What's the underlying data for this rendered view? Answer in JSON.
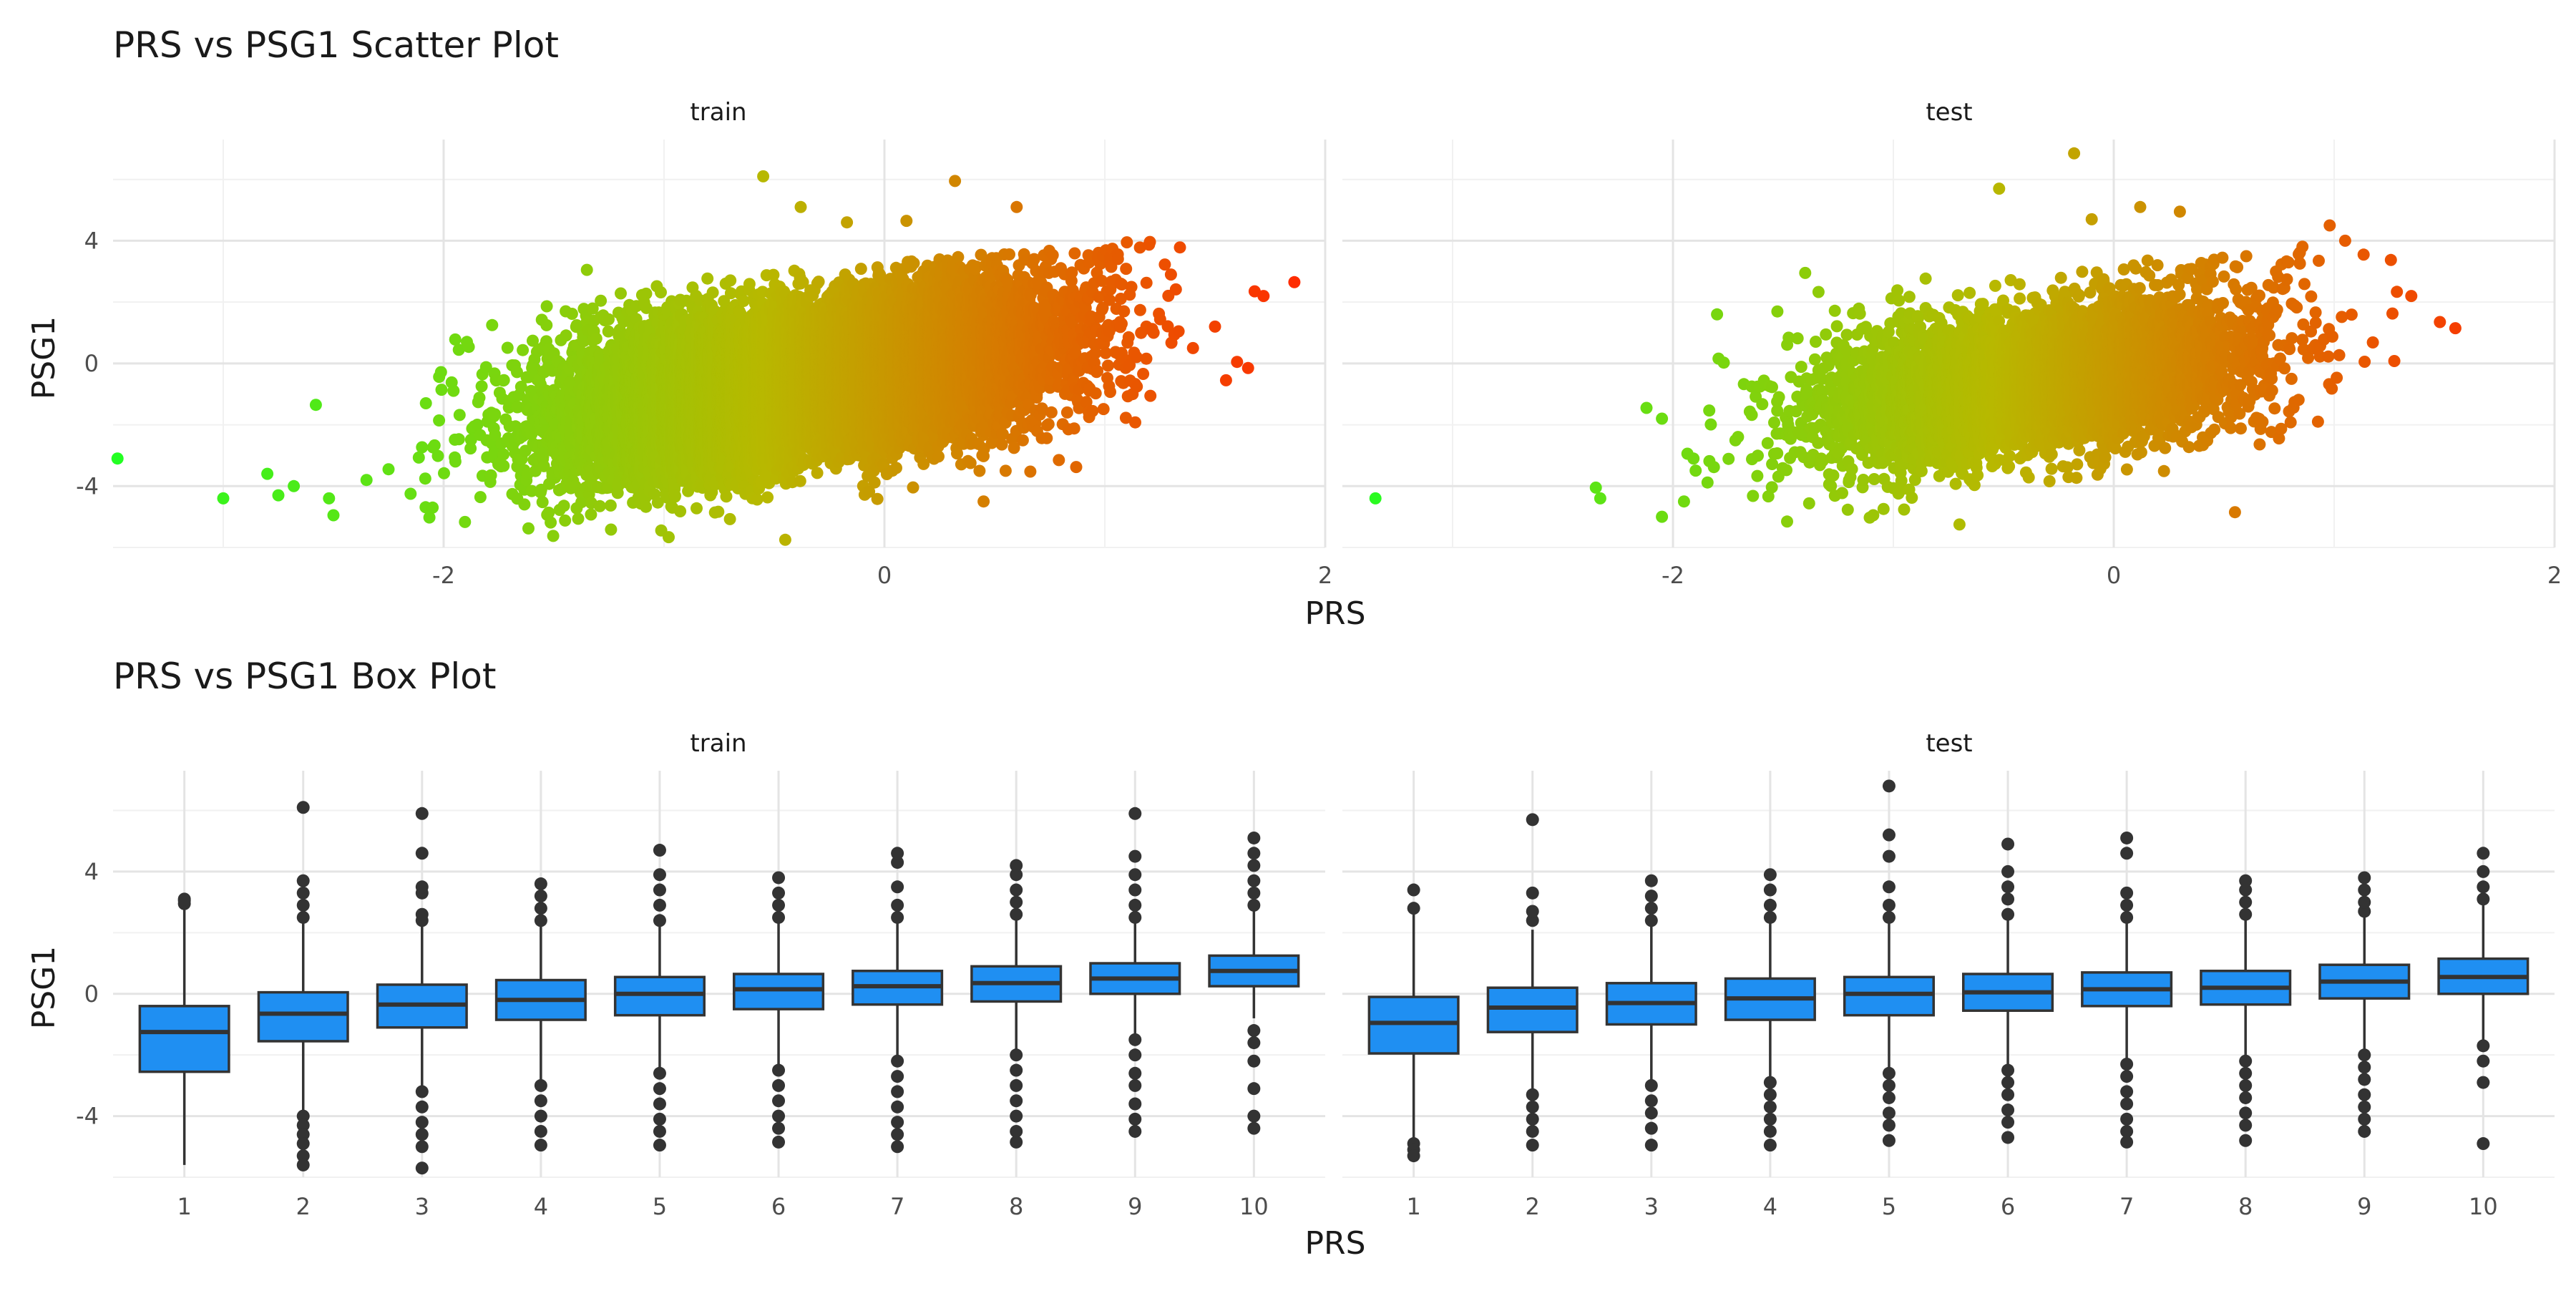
{
  "chart_data": [
    {
      "type": "scatter",
      "title": "PRS vs PSG1 Scatter Plot",
      "xlabel": "PRS",
      "ylabel": "PSG1",
      "facets": [
        "train",
        "test"
      ],
      "x_ticks": [
        "-2",
        "0",
        "2"
      ],
      "y_ticks": [
        "4",
        "0",
        "-4"
      ],
      "xlim": [
        -3.5,
        2.0
      ],
      "ylim": [
        -6.0,
        7.3
      ],
      "grid": true,
      "color_scale": {
        "low": "#22ff22",
        "mid": "#b8b800",
        "high": "#ff2a00",
        "mapped_to": "PRS"
      },
      "series": [
        {
          "facet": "train",
          "n_points_approx": 20000,
          "cloud": {
            "x_mean": -0.35,
            "x_sd": 0.5,
            "y_intercept": -0.15,
            "y_slope": 1.15,
            "y_sd": 1.3,
            "y_min": -5.7,
            "y_max": 3.3
          },
          "outliers": [
            [
              -3.48,
              -3.1
            ],
            [
              -3.0,
              -4.4
            ],
            [
              -2.8,
              -3.6
            ],
            [
              -2.75,
              -4.3
            ],
            [
              -2.68,
              -4.0
            ],
            [
              -2.58,
              -1.35
            ],
            [
              -2.52,
              -4.4
            ],
            [
              -2.5,
              -4.95
            ],
            [
              -2.35,
              -3.8
            ],
            [
              -2.25,
              -3.45
            ],
            [
              -2.15,
              -4.25
            ],
            [
              -2.05,
              -4.7
            ],
            [
              -1.78,
              1.25
            ],
            [
              -1.35,
              3.05
            ],
            [
              -0.55,
              6.1
            ],
            [
              -0.38,
              5.1
            ],
            [
              -0.17,
              4.6
            ],
            [
              0.1,
              4.65
            ],
            [
              0.32,
              5.95
            ],
            [
              0.6,
              5.1
            ],
            [
              0.98,
              3.25
            ],
            [
              1.1,
              3.95
            ],
            [
              1.3,
              2.9
            ],
            [
              1.4,
              0.5
            ],
            [
              1.5,
              1.2
            ],
            [
              1.55,
              -0.55
            ],
            [
              1.6,
              0.05
            ],
            [
              1.65,
              -0.15
            ],
            [
              1.68,
              2.35
            ],
            [
              1.72,
              2.2
            ],
            [
              1.86,
              2.65
            ],
            [
              0.65,
              -2.0
            ],
            [
              0.55,
              -3.5
            ],
            [
              0.45,
              -4.5
            ],
            [
              -0.45,
              -5.75
            ]
          ]
        },
        {
          "facet": "test",
          "n_points_approx": 6000,
          "cloud": {
            "x_mean": -0.35,
            "x_sd": 0.48,
            "y_intercept": -0.2,
            "y_slope": 1.05,
            "y_sd": 1.3,
            "y_min": -5.3,
            "y_max": 3.3
          },
          "outliers": [
            [
              -3.35,
              -4.4
            ],
            [
              -2.35,
              -4.05
            ],
            [
              -2.33,
              -4.4
            ],
            [
              -2.12,
              -1.45
            ],
            [
              -2.05,
              -1.8
            ],
            [
              -2.05,
              -5.0
            ],
            [
              -1.95,
              -4.5
            ],
            [
              -1.8,
              1.6
            ],
            [
              -1.4,
              2.95
            ],
            [
              -0.52,
              5.7
            ],
            [
              -0.18,
              6.85
            ],
            [
              -0.1,
              4.7
            ],
            [
              0.12,
              5.1
            ],
            [
              0.3,
              4.95
            ],
            [
              0.98,
              4.5
            ],
            [
              1.05,
              4.0
            ],
            [
              1.35,
              2.2
            ],
            [
              1.48,
              1.35
            ],
            [
              1.55,
              1.15
            ],
            [
              0.6,
              -0.3
            ],
            [
              0.55,
              -4.85
            ],
            [
              -0.7,
              -5.25
            ]
          ]
        }
      ]
    },
    {
      "type": "box",
      "title": "PRS vs PSG1 Box Plot",
      "xlabel": "PRS",
      "ylabel": "PSG1",
      "facets": [
        "train",
        "test"
      ],
      "categories": [
        "1",
        "2",
        "3",
        "4",
        "5",
        "6",
        "7",
        "8",
        "9",
        "10"
      ],
      "y_ticks": [
        "4",
        "0",
        "-4"
      ],
      "ylim": [
        -6.0,
        7.3
      ],
      "grid": true,
      "fill_color": "#1f8ff2",
      "series": [
        {
          "name": "train",
          "boxes": [
            {
              "q1": -2.55,
              "median": -1.25,
              "q3": -0.4,
              "whisker_low": -5.6,
              "whisker_high": 2.85,
              "outliers": [
                2.95,
                3.05,
                3.1
              ]
            },
            {
              "q1": -1.55,
              "median": -0.65,
              "q3": 0.05,
              "whisker_low": -3.9,
              "whisker_high": 2.3,
              "outliers": [
                -4.0,
                -4.3,
                -4.6,
                -4.9,
                -5.3,
                -5.6,
                2.5,
                2.9,
                3.3,
                3.7,
                6.1
              ]
            },
            {
              "q1": -1.1,
              "median": -0.35,
              "q3": 0.3,
              "whisker_low": -3.0,
              "whisker_high": 2.3,
              "outliers": [
                -3.2,
                -3.7,
                -4.2,
                -4.6,
                -5.0,
                -5.7,
                2.4,
                2.6,
                3.3,
                3.5,
                4.6,
                5.9
              ]
            },
            {
              "q1": -0.85,
              "median": -0.2,
              "q3": 0.45,
              "whisker_low": -2.8,
              "whisker_high": 2.3,
              "outliers": [
                -3.0,
                -3.5,
                -4.0,
                -4.5,
                -4.95,
                2.4,
                2.8,
                3.2,
                3.6
              ]
            },
            {
              "q1": -0.7,
              "median": 0.0,
              "q3": 0.55,
              "whisker_low": -2.4,
              "whisker_high": 2.3,
              "outliers": [
                -2.6,
                -3.1,
                -3.6,
                -4.1,
                -4.5,
                -4.95,
                2.4,
                2.9,
                3.4,
                3.9,
                4.7
              ]
            },
            {
              "q1": -0.5,
              "median": 0.15,
              "q3": 0.65,
              "whisker_low": -2.3,
              "whisker_high": 2.35,
              "outliers": [
                -2.5,
                -3.0,
                -3.5,
                -4.0,
                -4.4,
                -4.85,
                2.5,
                2.9,
                3.3,
                3.8
              ]
            },
            {
              "q1": -0.35,
              "median": 0.25,
              "q3": 0.75,
              "whisker_low": -2.0,
              "whisker_high": 2.3,
              "outliers": [
                -2.2,
                -2.7,
                -3.2,
                -3.7,
                -4.2,
                -4.6,
                -5.0,
                2.5,
                2.9,
                3.5,
                4.3,
                4.6
              ]
            },
            {
              "q1": -0.25,
              "median": 0.35,
              "q3": 0.9,
              "whisker_low": -1.9,
              "whisker_high": 2.5,
              "outliers": [
                -2.0,
                -2.5,
                -3.0,
                -3.5,
                -4.0,
                -4.5,
                -4.85,
                2.6,
                3.0,
                3.4,
                3.9,
                4.2
              ]
            },
            {
              "q1": 0.0,
              "median": 0.5,
              "q3": 1.0,
              "whisker_low": -1.3,
              "whisker_high": 2.4,
              "outliers": [
                -1.5,
                -2.0,
                -2.6,
                -3.0,
                -3.6,
                -4.1,
                -4.5,
                2.5,
                2.9,
                3.4,
                3.9,
                4.5,
                5.9
              ]
            },
            {
              "q1": 0.25,
              "median": 0.75,
              "q3": 1.25,
              "whisker_low": -0.8,
              "whisker_high": 2.7,
              "outliers": [
                -1.2,
                -1.6,
                -2.2,
                -3.1,
                -4.0,
                -4.4,
                2.9,
                3.3,
                3.7,
                4.2,
                4.6,
                5.1
              ]
            }
          ]
        },
        {
          "name": "test",
          "boxes": [
            {
              "q1": -1.95,
              "median": -0.95,
              "q3": -0.1,
              "whisker_low": -4.7,
              "whisker_high": 2.6,
              "outliers": [
                -4.9,
                -5.1,
                -5.3,
                2.8,
                3.4
              ]
            },
            {
              "q1": -1.25,
              "median": -0.45,
              "q3": 0.2,
              "whisker_low": -3.1,
              "whisker_high": 2.1,
              "outliers": [
                -3.3,
                -3.7,
                -4.1,
                -4.5,
                -4.95,
                2.4,
                2.7,
                3.3,
                5.7
              ]
            },
            {
              "q1": -1.0,
              "median": -0.3,
              "q3": 0.35,
              "whisker_low": -2.9,
              "whisker_high": 2.25,
              "outliers": [
                -3.0,
                -3.5,
                -3.9,
                -4.4,
                -4.95,
                2.4,
                2.8,
                3.2,
                3.7
              ]
            },
            {
              "q1": -0.85,
              "median": -0.15,
              "q3": 0.5,
              "whisker_low": -2.7,
              "whisker_high": 2.35,
              "outliers": [
                -2.9,
                -3.3,
                -3.7,
                -4.1,
                -4.5,
                -4.95,
                2.5,
                2.9,
                3.4,
                3.9
              ]
            },
            {
              "q1": -0.7,
              "median": 0.0,
              "q3": 0.55,
              "whisker_low": -2.4,
              "whisker_high": 2.3,
              "outliers": [
                -2.6,
                -3.0,
                -3.4,
                -3.9,
                -4.3,
                -4.8,
                2.5,
                2.9,
                3.5,
                4.5,
                5.2,
                6.8
              ]
            },
            {
              "q1": -0.55,
              "median": 0.05,
              "q3": 0.65,
              "whisker_low": -2.3,
              "whisker_high": 2.4,
              "outliers": [
                -2.5,
                -2.9,
                -3.3,
                -3.8,
                -4.2,
                -4.7,
                2.6,
                3.1,
                3.5,
                4.0,
                4.9
              ]
            },
            {
              "q1": -0.4,
              "median": 0.15,
              "q3": 0.7,
              "whisker_low": -2.1,
              "whisker_high": 2.35,
              "outliers": [
                -2.3,
                -2.7,
                -3.2,
                -3.6,
                -4.1,
                -4.5,
                -4.85,
                2.5,
                2.9,
                3.3,
                4.6,
                5.1
              ]
            },
            {
              "q1": -0.35,
              "median": 0.2,
              "q3": 0.75,
              "whisker_low": -2.0,
              "whisker_high": 2.4,
              "outliers": [
                -2.2,
                -2.6,
                -3.0,
                -3.4,
                -3.9,
                -4.3,
                -4.8,
                2.6,
                3.0,
                3.4,
                3.7
              ]
            },
            {
              "q1": -0.15,
              "median": 0.4,
              "q3": 0.95,
              "whisker_low": -1.8,
              "whisker_high": 2.6,
              "outliers": [
                -2.0,
                -2.4,
                -2.8,
                -3.3,
                -3.7,
                -4.1,
                -4.5,
                2.7,
                3.0,
                3.4,
                3.8
              ]
            },
            {
              "q1": 0.0,
              "median": 0.55,
              "q3": 1.15,
              "whisker_low": -1.5,
              "whisker_high": 2.9,
              "outliers": [
                -1.7,
                -2.2,
                -2.9,
                -4.9,
                3.1,
                3.5,
                4.0,
                4.6
              ]
            }
          ]
        }
      ]
    }
  ]
}
